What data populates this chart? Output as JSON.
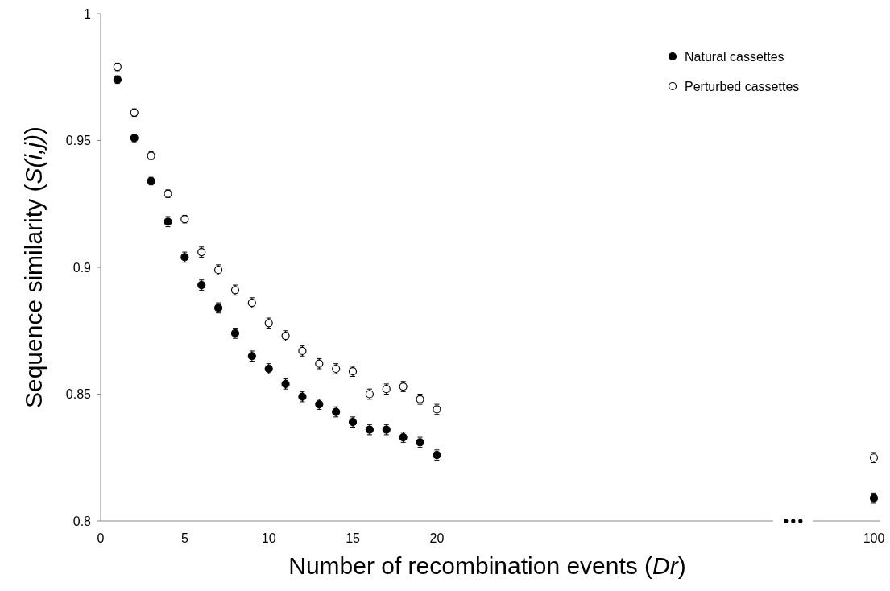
{
  "chart_data": {
    "type": "scatter",
    "xlabel": "Number of recombination events (Dr)",
    "ylabel": "Sequence similarity (S(i,j))",
    "categories": [
      "0",
      null,
      null,
      null,
      null,
      "5",
      null,
      null,
      null,
      null,
      "10",
      null,
      null,
      null,
      null,
      "15",
      null,
      null,
      null,
      null,
      "20",
      null,
      null,
      null,
      null,
      null,
      null,
      null,
      null,
      null,
      null,
      null,
      null,
      null,
      null,
      null,
      null,
      null,
      null,
      null,
      null,
      null,
      null,
      null,
      null,
      null,
      "100"
    ],
    "ylim": [
      0.8,
      1
    ],
    "yticks": [
      0.8,
      0.85,
      0.9,
      0.95,
      1
    ],
    "legend": "top right",
    "marker": "circle",
    "series": [
      {
        "name": "Natural cassettes",
        "color": "#000000",
        "values": [
          null,
          0.974,
          0.951,
          0.934,
          0.918,
          0.904,
          0.893,
          0.884,
          0.874,
          0.865,
          0.86,
          0.854,
          0.849,
          0.846,
          0.843,
          0.839,
          0.836,
          0.836,
          0.833,
          0.831,
          0.826,
          null,
          null,
          null,
          null,
          null,
          null,
          null,
          null,
          null,
          null,
          null,
          null,
          null,
          null,
          null,
          null,
          null,
          null,
          null,
          null,
          null,
          null,
          null,
          null,
          null,
          0.809
        ],
        "errors": [
          null,
          0.0015,
          0.0015,
          0.0015,
          0.002,
          0.002,
          0.002,
          0.002,
          0.002,
          0.002,
          0.002,
          0.002,
          0.002,
          0.002,
          0.002,
          0.002,
          0.002,
          0.002,
          0.002,
          0.002,
          0.002,
          null,
          null,
          null,
          null,
          null,
          null,
          null,
          null,
          null,
          null,
          null,
          null,
          null,
          null,
          null,
          null,
          null,
          null,
          null,
          null,
          null,
          null,
          null,
          null,
          null,
          0.002
        ]
      },
      {
        "name": "Perturbed cassettes",
        "color": "#ffffff",
        "values": [
          null,
          0.979,
          0.961,
          0.944,
          0.929,
          0.919,
          0.906,
          0.899,
          0.891,
          0.886,
          0.878,
          0.873,
          0.867,
          0.862,
          0.86,
          0.859,
          0.85,
          0.852,
          0.853,
          0.848,
          0.844,
          null,
          null,
          null,
          null,
          null,
          null,
          null,
          null,
          null,
          null,
          null,
          null,
          null,
          null,
          null,
          null,
          null,
          null,
          null,
          null,
          null,
          null,
          null,
          null,
          null,
          0.825
        ],
        "errors": [
          null,
          0.0015,
          0.0015,
          0.0015,
          0.0015,
          0.0015,
          0.002,
          0.002,
          0.002,
          0.002,
          0.002,
          0.002,
          0.002,
          0.002,
          0.002,
          0.002,
          0.002,
          0.002,
          0.002,
          0.002,
          0.002,
          null,
          null,
          null,
          null,
          null,
          null,
          null,
          null,
          null,
          null,
          null,
          null,
          null,
          null,
          null,
          null,
          null,
          null,
          null,
          null,
          null,
          null,
          null,
          null,
          null,
          0.002
        ]
      }
    ]
  }
}
